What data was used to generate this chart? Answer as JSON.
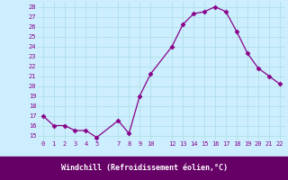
{
  "x": [
    0,
    1,
    2,
    3,
    4,
    5,
    7,
    8,
    9,
    10,
    12,
    13,
    14,
    15,
    16,
    17,
    18,
    19,
    20,
    21,
    22
  ],
  "y": [
    17,
    16,
    16,
    15.5,
    15.5,
    14.8,
    16.5,
    15.2,
    19,
    21.2,
    24,
    26.2,
    27.3,
    27.5,
    28.0,
    27.5,
    25.5,
    23.3,
    21.8,
    21.0,
    20.2
  ],
  "line_color": "#880088",
  "marker": "D",
  "marker_size": 2.5,
  "bg_color": "#cceeff",
  "grid_color": "#aadddd",
  "xlabel": "Windchill (Refroidissement éolien,°C)",
  "xlabel_color": "white",
  "xlabel_bg": "#660066",
  "tick_color": "#880088",
  "yticks": [
    15,
    16,
    17,
    18,
    19,
    20,
    21,
    22,
    23,
    24,
    25,
    26,
    27,
    28
  ],
  "xticks": [
    0,
    1,
    2,
    3,
    4,
    5,
    7,
    8,
    9,
    10,
    12,
    13,
    14,
    15,
    16,
    17,
    18,
    19,
    20,
    21,
    22
  ],
  "xlim": [
    -0.5,
    22.5
  ],
  "ylim": [
    14.5,
    28.5
  ]
}
